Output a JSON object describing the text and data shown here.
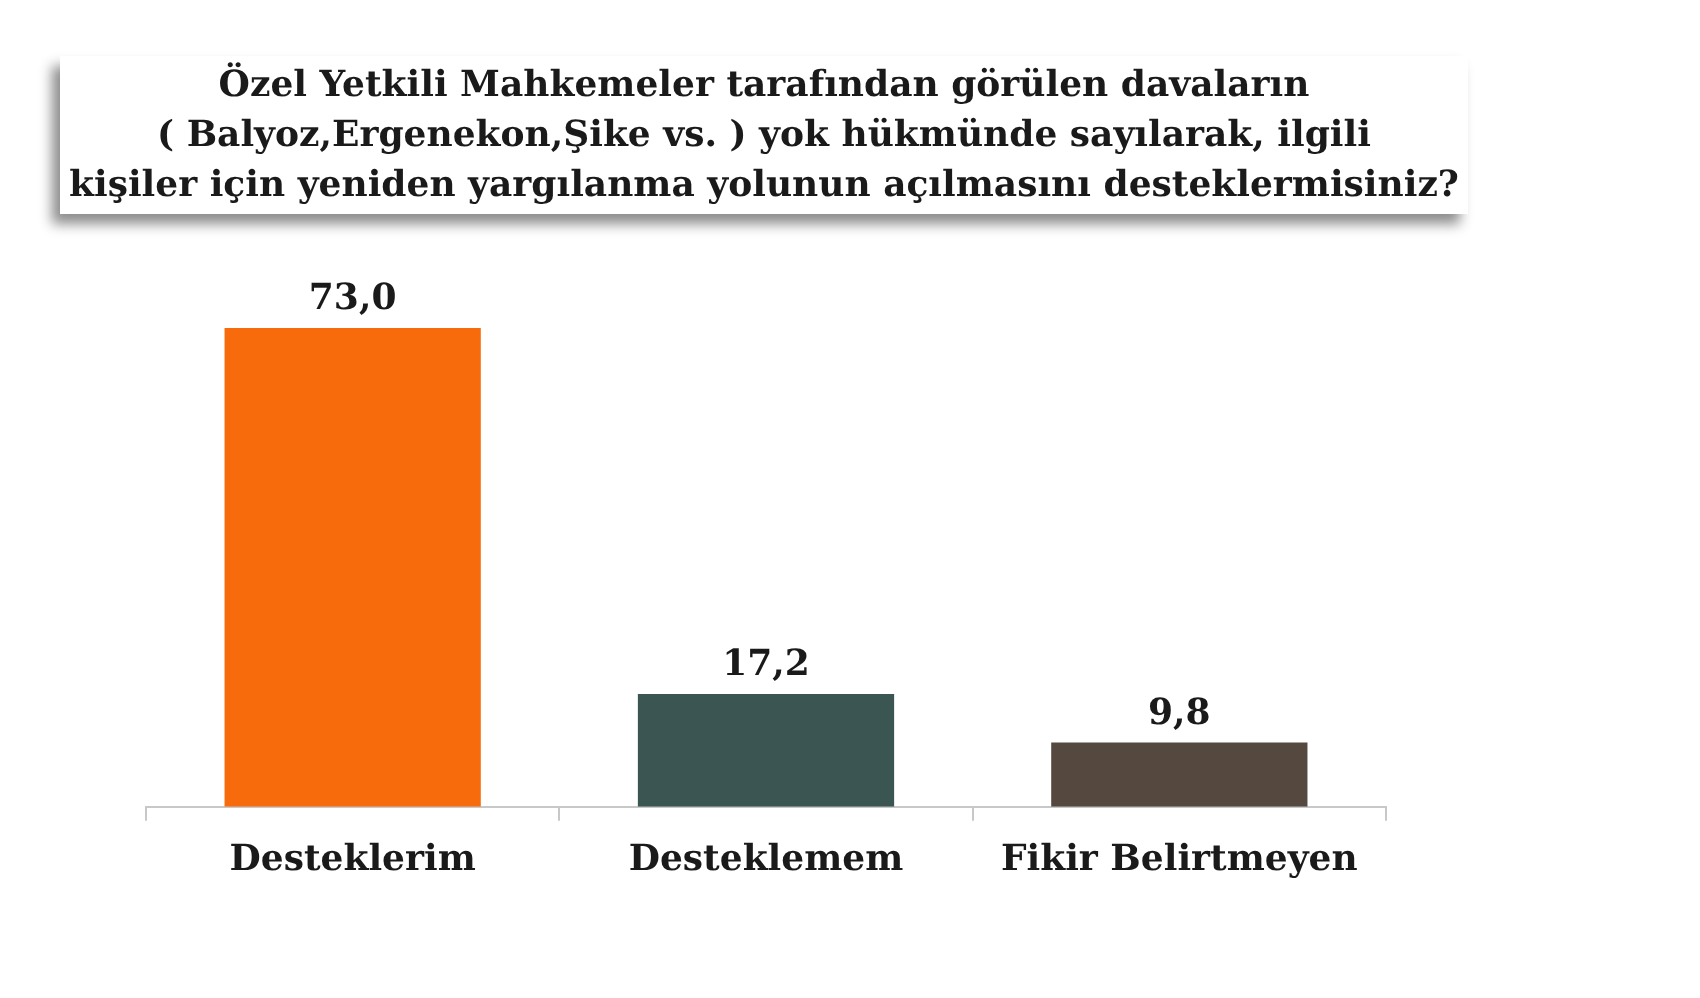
{
  "chart_data": {
    "type": "bar",
    "title": "Özel Yetkili Mahkemeler tarafından görülen davaların\n( Balyoz,Ergenekon,Şike vs. ) yok hükmünde sayılarak, ilgili\nkişiler için yeniden yargılanma yolunun açılmasını desteklermisiniz?",
    "categories": [
      "Desteklerim",
      "Desteklemem",
      "Fikir Belirtmeyen"
    ],
    "values": [
      73.0,
      17.2,
      9.8
    ],
    "value_labels": [
      "73,0",
      "17,2",
      "9,8"
    ],
    "colors": [
      "#f76b0c",
      "#3b5553",
      "#55493f"
    ]
  }
}
